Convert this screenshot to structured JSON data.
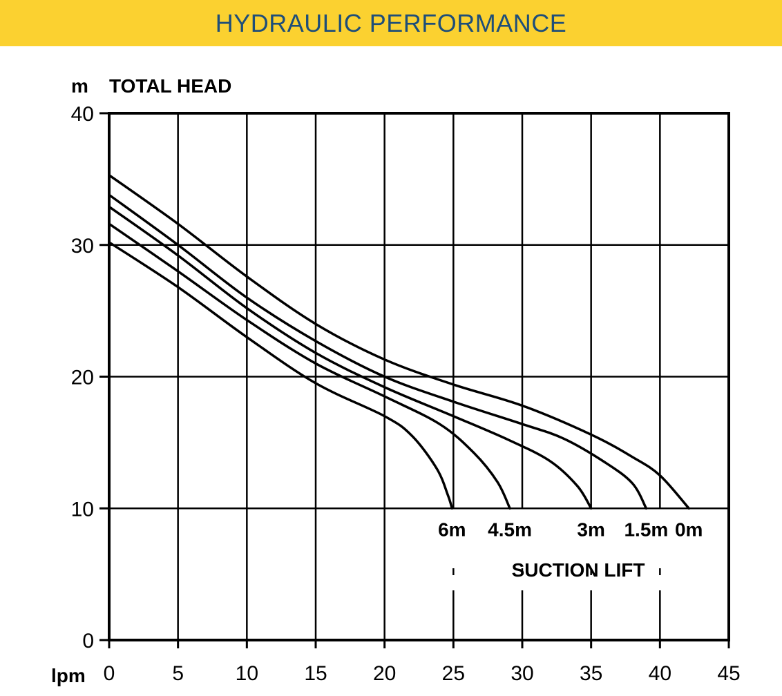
{
  "banner": {
    "title": "HYDRAULIC PERFORMANCE"
  },
  "colors": {
    "banner_bg": "#fbd130",
    "banner_text": "#1e4e79"
  },
  "chart_data": {
    "type": "line",
    "title": "",
    "xlabel": "lpm",
    "ylabel": "TOTAL HEAD",
    "yunit": "m",
    "xlim": [
      0,
      45
    ],
    "ylim": [
      0,
      40
    ],
    "x_ticks": [
      "0",
      "5",
      "10",
      "15",
      "20",
      "25",
      "30",
      "35",
      "40",
      "45"
    ],
    "y_ticks": [
      "0",
      "10",
      "20",
      "30",
      "40"
    ],
    "grid": true,
    "legend_title": "SUCTION LIFT",
    "series": [
      {
        "name": "0m",
        "points": [
          [
            0,
            35.3
          ],
          [
            5,
            31.6
          ],
          [
            10,
            27.6
          ],
          [
            15,
            24.0
          ],
          [
            20,
            21.3
          ],
          [
            25,
            19.4
          ],
          [
            30,
            17.8
          ],
          [
            35,
            15.6
          ],
          [
            38,
            13.9
          ],
          [
            40,
            12.5
          ],
          [
            42.1,
            10.0
          ]
        ]
      },
      {
        "name": "1.5m",
        "points": [
          [
            0,
            33.8
          ],
          [
            5,
            30.0
          ],
          [
            10,
            26.0
          ],
          [
            15,
            22.7
          ],
          [
            20,
            20.0
          ],
          [
            25,
            18.1
          ],
          [
            30,
            16.4
          ],
          [
            33,
            15.3
          ],
          [
            36,
            13.5
          ],
          [
            38,
            11.9
          ],
          [
            39,
            10.0
          ]
        ]
      },
      {
        "name": "3m",
        "points": [
          [
            0,
            32.9
          ],
          [
            5,
            29.2
          ],
          [
            10,
            25.2
          ],
          [
            15,
            21.8
          ],
          [
            20,
            19.2
          ],
          [
            25,
            17.0
          ],
          [
            29,
            15.2
          ],
          [
            32,
            13.6
          ],
          [
            34,
            11.7
          ],
          [
            35,
            10.0
          ]
        ]
      },
      {
        "name": "4.5m",
        "points": [
          [
            0,
            31.6
          ],
          [
            5,
            28.0
          ],
          [
            10,
            24.3
          ],
          [
            15,
            21.0
          ],
          [
            20,
            18.5
          ],
          [
            24,
            16.4
          ],
          [
            26.5,
            14.2
          ],
          [
            28.2,
            12.0
          ],
          [
            29.1,
            10.0
          ]
        ]
      },
      {
        "name": "6m",
        "points": [
          [
            0,
            30.2
          ],
          [
            5,
            26.8
          ],
          [
            10,
            23.0
          ],
          [
            15,
            19.5
          ],
          [
            20,
            17.0
          ],
          [
            22,
            15.5
          ],
          [
            23.8,
            13.0
          ],
          [
            24.6,
            11.0
          ],
          [
            24.9,
            10.0
          ]
        ]
      }
    ]
  }
}
